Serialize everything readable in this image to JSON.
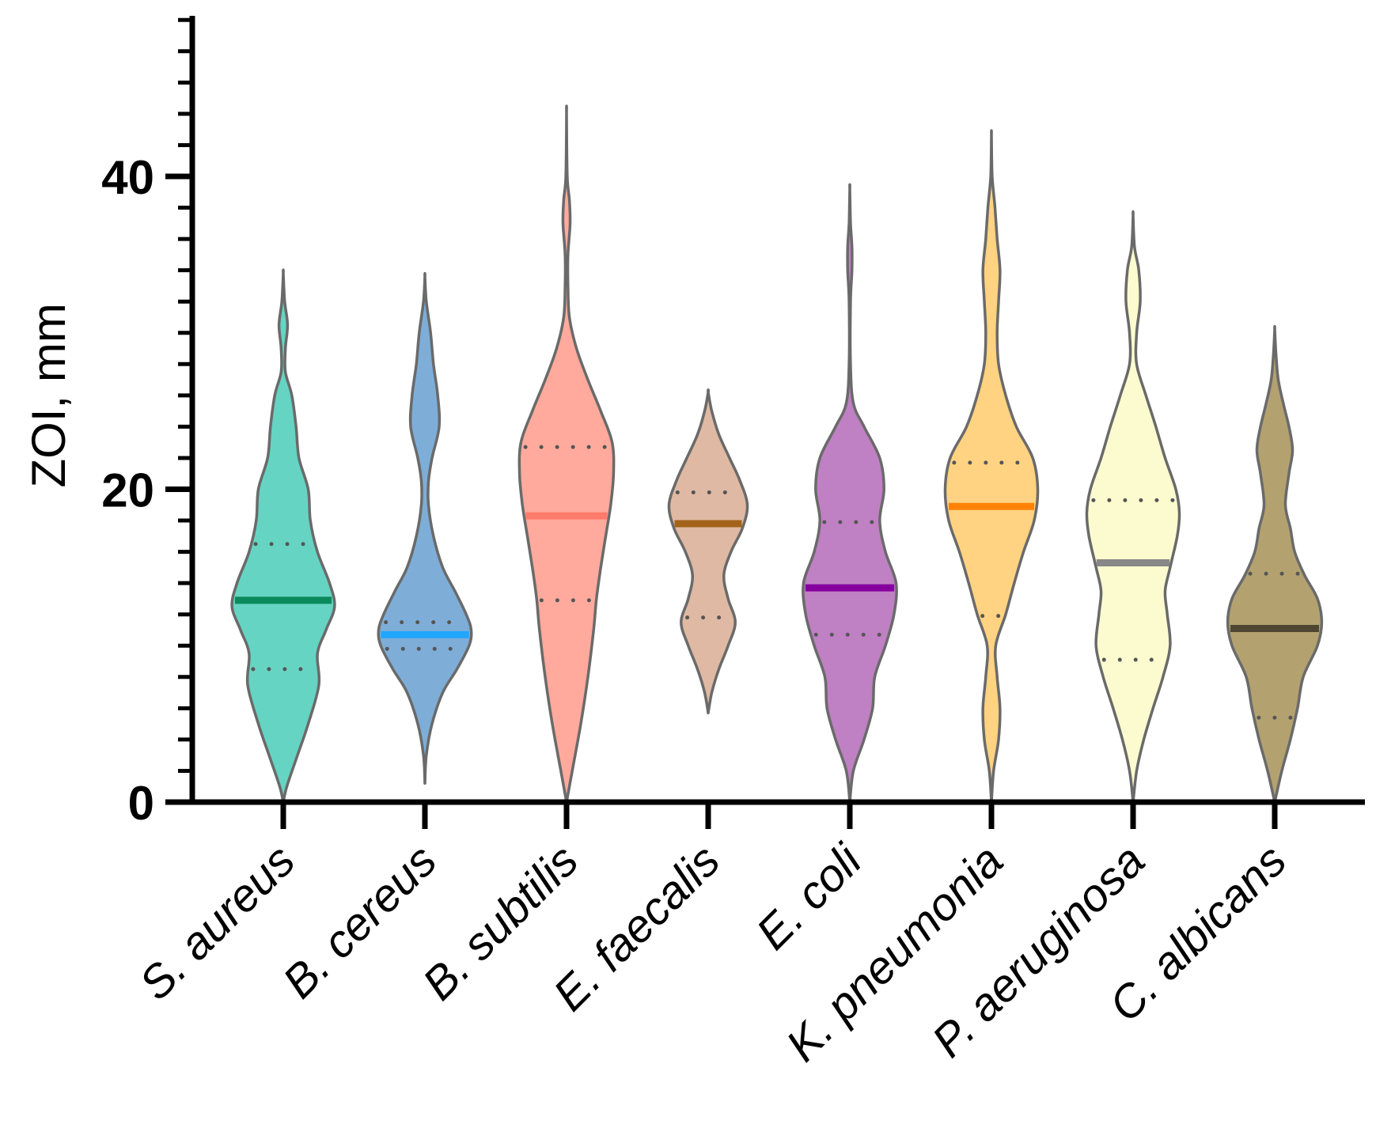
{
  "chart_data": {
    "type": "violin",
    "title": "",
    "xlabel": "",
    "ylabel": "ZOI, mm",
    "ylim": [
      0,
      50
    ],
    "y_major_ticks": [
      0,
      20,
      40
    ],
    "y_minor_step": 2,
    "categories": [
      "S. aureus",
      "B. cereus",
      "B. subtilis",
      "E. faecalis",
      "E. coli",
      "K. pneumonia",
      "P. aeruginosa",
      "C. albicans"
    ],
    "series": [
      {
        "name": "S. aureus",
        "fill": "#66d4c2",
        "median_color": "#0a8a5a",
        "min": 0,
        "max": 33.8,
        "q1": 8.5,
        "median": 12.9,
        "q3": 16.5,
        "profile": [
          [
            0,
            0
          ],
          [
            1,
            0.05
          ],
          [
            3,
            0.2
          ],
          [
            5,
            0.35
          ],
          [
            7.5,
            0.5
          ],
          [
            9.5,
            0.48
          ],
          [
            11,
            0.6
          ],
          [
            12.5,
            0.72
          ],
          [
            14,
            0.65
          ],
          [
            16,
            0.48
          ],
          [
            18,
            0.38
          ],
          [
            20,
            0.35
          ],
          [
            22,
            0.22
          ],
          [
            24,
            0.18
          ],
          [
            26,
            0.12
          ],
          [
            27.5,
            0.03
          ],
          [
            29,
            0.03
          ],
          [
            30.5,
            0.06
          ],
          [
            32,
            0.02
          ],
          [
            33.8,
            0.0
          ]
        ]
      },
      {
        "name": "B. cereus",
        "fill": "#7eaed8",
        "median_color": "#22a6ff",
        "min": 1.2,
        "max": 33.6,
        "q1": 9.8,
        "median": 10.7,
        "q3": 11.5,
        "profile": [
          [
            1.2,
            0
          ],
          [
            3,
            0.02
          ],
          [
            5,
            0.1
          ],
          [
            7,
            0.25
          ],
          [
            8.5,
            0.45
          ],
          [
            10,
            0.62
          ],
          [
            11,
            0.65
          ],
          [
            12,
            0.58
          ],
          [
            13.5,
            0.42
          ],
          [
            15,
            0.25
          ],
          [
            17,
            0.12
          ],
          [
            19,
            0.05
          ],
          [
            20.5,
            0.05
          ],
          [
            22,
            0.1
          ],
          [
            24,
            0.2
          ],
          [
            26,
            0.18
          ],
          [
            28,
            0.12
          ],
          [
            30,
            0.08
          ],
          [
            32,
            0.02
          ],
          [
            33.6,
            0
          ]
        ]
      },
      {
        "name": "B. subtilis",
        "fill": "#ffaa9c",
        "median_color": "#ff7b6b",
        "min": 0,
        "max": 44,
        "q1": 12.9,
        "median": 18.3,
        "q3": 22.7,
        "profile": [
          [
            0,
            0
          ],
          [
            2,
            0.08
          ],
          [
            5,
            0.2
          ],
          [
            8,
            0.3
          ],
          [
            11,
            0.38
          ],
          [
            13,
            0.42
          ],
          [
            15,
            0.48
          ],
          [
            17,
            0.55
          ],
          [
            19,
            0.62
          ],
          [
            21,
            0.66
          ],
          [
            23,
            0.64
          ],
          [
            25,
            0.48
          ],
          [
            27,
            0.3
          ],
          [
            29,
            0.14
          ],
          [
            31,
            0.04
          ],
          [
            33,
            0.02
          ],
          [
            35,
            0.02
          ],
          [
            37,
            0.05
          ],
          [
            38.5,
            0.04
          ],
          [
            40,
            0.01
          ],
          [
            44,
            0
          ]
        ]
      },
      {
        "name": "E. faecalis",
        "fill": "#dfb9a3",
        "median_color": "#a3631a",
        "min": 5.7,
        "max": 26.2,
        "q1": 11.8,
        "median": 17.8,
        "q3": 19.8,
        "profile": [
          [
            5.7,
            0
          ],
          [
            7,
            0.05
          ],
          [
            8.5,
            0.15
          ],
          [
            10,
            0.28
          ],
          [
            11.5,
            0.38
          ],
          [
            13,
            0.28
          ],
          [
            14.5,
            0.22
          ],
          [
            16,
            0.32
          ],
          [
            17.5,
            0.48
          ],
          [
            19,
            0.55
          ],
          [
            20.5,
            0.45
          ],
          [
            22,
            0.3
          ],
          [
            23.5,
            0.15
          ],
          [
            25,
            0.05
          ],
          [
            26.2,
            0
          ]
        ]
      },
      {
        "name": "E. coli",
        "fill": "#c080c4",
        "median_color": "#86009e",
        "min": 0,
        "max": 39.2,
        "q1": 10.7,
        "median": 13.7,
        "q3": 17.9,
        "profile": [
          [
            0,
            0
          ],
          [
            2,
            0.05
          ],
          [
            4,
            0.2
          ],
          [
            6,
            0.32
          ],
          [
            8,
            0.35
          ],
          [
            10,
            0.5
          ],
          [
            12,
            0.62
          ],
          [
            14,
            0.65
          ],
          [
            16,
            0.5
          ],
          [
            18,
            0.42
          ],
          [
            20,
            0.48
          ],
          [
            22,
            0.42
          ],
          [
            24,
            0.2
          ],
          [
            25.5,
            0.05
          ],
          [
            28,
            0.01
          ],
          [
            32,
            0.01
          ],
          [
            34,
            0.03
          ],
          [
            35.5,
            0.03
          ],
          [
            37,
            0.01
          ],
          [
            39.2,
            0
          ]
        ]
      },
      {
        "name": "K. pneumonia",
        "fill": "#ffd381",
        "median_color": "#ff8207",
        "min": 0,
        "max": 42.6,
        "q1": 11.9,
        "median": 18.9,
        "q3": 21.7,
        "profile": [
          [
            0,
            0
          ],
          [
            2,
            0.03
          ],
          [
            4,
            0.1
          ],
          [
            6,
            0.12
          ],
          [
            8,
            0.08
          ],
          [
            10,
            0.06
          ],
          [
            12,
            0.2
          ],
          [
            14,
            0.32
          ],
          [
            16,
            0.45
          ],
          [
            18,
            0.6
          ],
          [
            20,
            0.65
          ],
          [
            22,
            0.58
          ],
          [
            24,
            0.35
          ],
          [
            26,
            0.2
          ],
          [
            28,
            0.1
          ],
          [
            30,
            0.08
          ],
          [
            32,
            0.1
          ],
          [
            34,
            0.12
          ],
          [
            36,
            0.08
          ],
          [
            38,
            0.05
          ],
          [
            40,
            0.01
          ],
          [
            42.6,
            0
          ]
        ]
      },
      {
        "name": "P. aeruginosa",
        "fill": "#fbfbcf",
        "median_color": "#888888",
        "min": 0,
        "max": 37.5,
        "q1": 9.1,
        "median": 15.3,
        "q3": 19.3,
        "profile": [
          [
            0,
            0
          ],
          [
            2,
            0.05
          ],
          [
            4,
            0.15
          ],
          [
            6,
            0.28
          ],
          [
            8,
            0.42
          ],
          [
            10,
            0.52
          ],
          [
            12,
            0.48
          ],
          [
            13.5,
            0.45
          ],
          [
            15,
            0.52
          ],
          [
            17,
            0.62
          ],
          [
            18.5,
            0.65
          ],
          [
            20,
            0.6
          ],
          [
            22,
            0.45
          ],
          [
            24,
            0.32
          ],
          [
            26,
            0.18
          ],
          [
            28,
            0.05
          ],
          [
            30,
            0.05
          ],
          [
            32,
            0.1
          ],
          [
            34,
            0.08
          ],
          [
            35.5,
            0.02
          ],
          [
            37.5,
            0
          ]
        ]
      },
      {
        "name": "C. albicans",
        "fill": "#b3a26f",
        "median_color": "#4e4631",
        "min": 0,
        "max": 30.2,
        "q1": 5.4,
        "median": 11.1,
        "q3": 14.6,
        "profile": [
          [
            0,
            0
          ],
          [
            2,
            0.1
          ],
          [
            4,
            0.22
          ],
          [
            6,
            0.32
          ],
          [
            8,
            0.4
          ],
          [
            10,
            0.6
          ],
          [
            11.5,
            0.66
          ],
          [
            13,
            0.6
          ],
          [
            14.5,
            0.42
          ],
          [
            16,
            0.28
          ],
          [
            17.5,
            0.22
          ],
          [
            19,
            0.15
          ],
          [
            21,
            0.2
          ],
          [
            22.5,
            0.25
          ],
          [
            24,
            0.2
          ],
          [
            25.5,
            0.12
          ],
          [
            27,
            0.05
          ],
          [
            28.5,
            0.02
          ],
          [
            30.2,
            0
          ]
        ]
      }
    ]
  }
}
